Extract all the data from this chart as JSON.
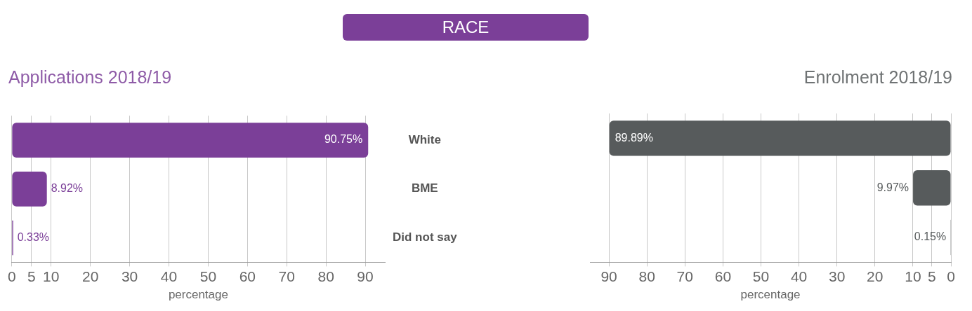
{
  "chart_data": [
    {
      "type": "bar",
      "orientation": "horizontal",
      "title": "RACE",
      "subtitle": "Applications 2018/19",
      "categories": [
        "White",
        "BME",
        "Did not say"
      ],
      "values": [
        90.75,
        8.92,
        0.33
      ],
      "value_labels": [
        "90.75%",
        "8.92%",
        "0.33%"
      ],
      "color": "#7b3f98",
      "xlabel": "percentage",
      "xlim": [
        0,
        95
      ],
      "xticks": [
        0,
        5,
        10,
        20,
        30,
        40,
        50,
        60,
        70,
        80,
        90
      ],
      "grid": "x"
    },
    {
      "type": "bar",
      "orientation": "horizontal",
      "subtitle": "Enrolment 2018/19",
      "categories": [
        null,
        null,
        null
      ],
      "values": [
        89.89,
        9.97,
        0.15
      ],
      "value_labels": [
        "89.89%",
        "9.97%",
        "0.15%"
      ],
      "color": "#575b5c",
      "xlabel": "percentage",
      "xlim": [
        95,
        0
      ],
      "xticks": [
        90,
        80,
        70,
        60,
        50,
        40,
        30,
        20,
        10,
        5,
        0
      ],
      "grid": "x",
      "tick_labels": "x"
    }
  ]
}
